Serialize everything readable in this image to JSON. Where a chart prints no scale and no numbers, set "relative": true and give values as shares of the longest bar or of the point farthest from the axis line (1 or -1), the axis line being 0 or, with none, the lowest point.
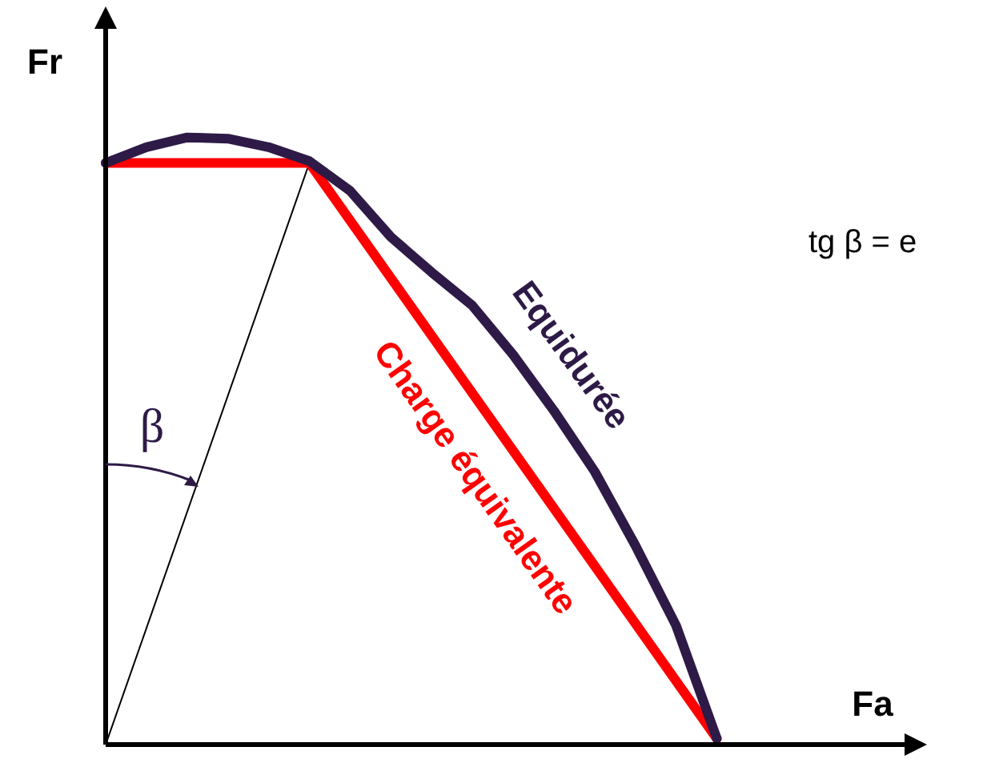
{
  "chart_data": {
    "type": "line",
    "relative": true,
    "xlabel": "Fa",
    "ylabel": "Fr",
    "marker": "none",
    "categories": [
      null,
      null,
      null,
      null,
      null,
      null,
      null,
      null,
      null,
      null,
      null,
      null,
      null,
      null,
      null,
      null,
      null,
      null,
      null,
      null,
      null
    ],
    "annotations": [
      "tg β = e",
      "β"
    ],
    "series": [
      {
        "name": "Equidurée",
        "color": "#2e1a47",
        "values": [
          0.958,
          0.984,
          1,
          0.998,
          0.984,
          0.961,
          0.912,
          0.836,
          0.778,
          0.723,
          0.642,
          0.55,
          0.45,
          0.328,
          0.196,
          0.01,
          null,
          null,
          null,
          null,
          null
        ]
      },
      {
        "name": "Charge équivalente",
        "color": "#ff0000",
        "values": [
          0.958,
          null,
          null,
          null,
          null,
          0.958,
          null,
          null,
          null,
          null,
          null,
          null,
          null,
          null,
          null,
          0.01,
          null,
          null,
          null,
          null,
          null
        ]
      },
      {
        "color": "#000000",
        "values": [
          0,
          null,
          null,
          null,
          null,
          0.958,
          null,
          null,
          null,
          null,
          null,
          null,
          null,
          null,
          null,
          null,
          null,
          null,
          null,
          null,
          null
        ]
      }
    ]
  }
}
